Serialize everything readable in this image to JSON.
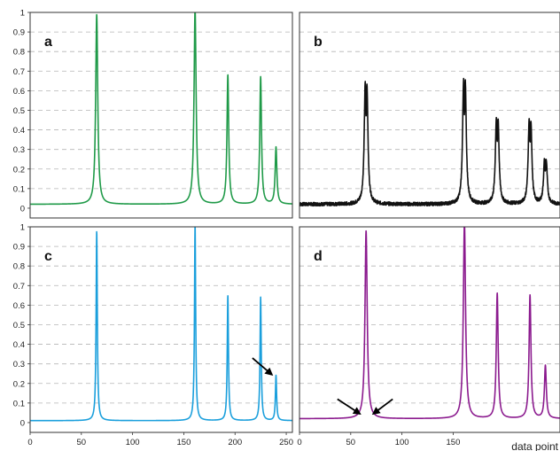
{
  "chart_data": [
    {
      "panel": "a",
      "type": "line",
      "color": "#1f9a48",
      "ylim": [
        -0.05,
        1.0
      ],
      "xlim": [
        0,
        256
      ],
      "yticks": [
        "0",
        "0.1",
        "0.2",
        "0.3",
        "0.4",
        "0.5",
        "0.6",
        "0.7",
        "0.8",
        "0.9",
        "1"
      ],
      "grid": "horizontal dashed",
      "baseline": 0.02,
      "peaks": [
        {
          "x": 65,
          "height": 0.97,
          "width": 1.2
        },
        {
          "x": 161,
          "height": 1.0,
          "width": 1.2
        },
        {
          "x": 193,
          "height": 0.66,
          "width": 1.0
        },
        {
          "x": 225,
          "height": 0.65,
          "width": 1.0
        },
        {
          "x": 240,
          "height": 0.29,
          "width": 1.0
        }
      ]
    },
    {
      "panel": "b",
      "type": "line",
      "color": "#111111",
      "ylim": [
        -0.05,
        1.0
      ],
      "noisy": true,
      "baseline": 0.02,
      "peaks": [
        {
          "x": 65,
          "height": 0.52,
          "width": 1.4,
          "split": true
        },
        {
          "x": 161,
          "height": 0.53,
          "width": 1.4,
          "split": true
        },
        {
          "x": 193,
          "height": 0.37,
          "width": 1.4,
          "split": true
        },
        {
          "x": 225,
          "height": 0.36,
          "width": 1.4,
          "split": true
        },
        {
          "x": 240,
          "height": 0.19,
          "width": 1.4,
          "split": true
        }
      ]
    },
    {
      "panel": "c",
      "type": "line",
      "color": "#1a9fdc",
      "ylim": [
        -0.05,
        1.0
      ],
      "xlim": [
        0,
        256
      ],
      "yticks": [
        "0",
        "0.1",
        "0.2",
        "0.3",
        "0.4",
        "0.5",
        "0.6",
        "0.7",
        "0.8",
        "0.9",
        "1"
      ],
      "xticks": [
        "0",
        "50",
        "100",
        "150",
        "200",
        "250"
      ],
      "xtick_values": [
        0,
        50,
        100,
        150,
        200,
        250
      ],
      "grid": "horizontal dashed",
      "baseline": 0.01,
      "annotation": "arrow pointing to peak at x=240",
      "peaks": [
        {
          "x": 65,
          "height": 0.97,
          "width": 0.7
        },
        {
          "x": 161,
          "height": 1.0,
          "width": 0.7
        },
        {
          "x": 193,
          "height": 0.64,
          "width": 0.7
        },
        {
          "x": 225,
          "height": 0.63,
          "width": 0.7
        },
        {
          "x": 240,
          "height": 0.23,
          "width": 0.7
        }
      ]
    },
    {
      "panel": "d",
      "type": "line",
      "color": "#8b1a8e",
      "ylim": [
        -0.05,
        1.0
      ],
      "xticks": [
        "0",
        "50",
        "100",
        "150"
      ],
      "xtick_values": [
        0,
        50,
        100,
        150
      ],
      "xlabel": "data point",
      "grid": "horizontal dashed",
      "baseline": 0.02,
      "annotation": "two arrows pointing to base of peak at x=65",
      "peaks": [
        {
          "x": 65,
          "height": 0.96,
          "width": 1.3
        },
        {
          "x": 161,
          "height": 1.0,
          "width": 1.3
        },
        {
          "x": 193,
          "height": 0.64,
          "width": 1.1
        },
        {
          "x": 225,
          "height": 0.63,
          "width": 1.1
        },
        {
          "x": 240,
          "height": 0.27,
          "width": 1.1
        }
      ]
    }
  ]
}
